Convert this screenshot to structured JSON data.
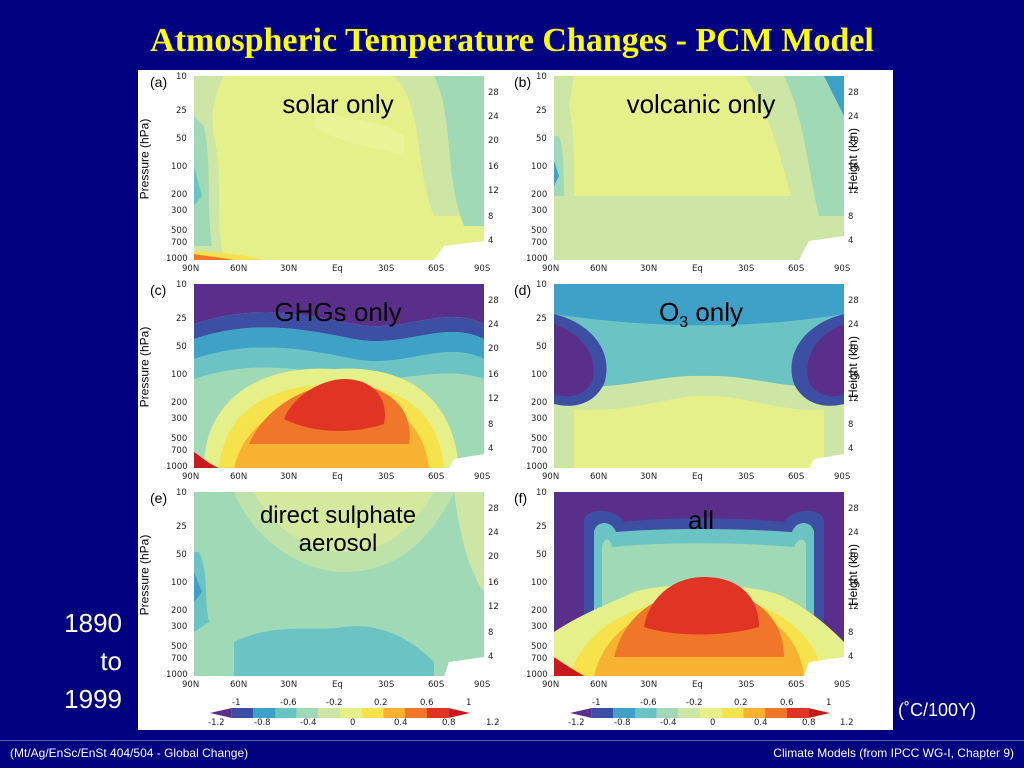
{
  "title": "Atmospheric Temperature Changes - PCM Model",
  "period": {
    "start": "1890",
    "mid": "to",
    "end": "1999"
  },
  "units": "(˚C/100Y)",
  "footer": {
    "left": "(Mt/Ag/EnSc/EnSt 404/504 - Global Change)",
    "right": "Climate Models  (from IPCC WG-I, Chapter 9)"
  },
  "axes": {
    "y_left_label": "Pressure (hPa)",
    "y_right_label": "Height (km)",
    "pressure_ticks": [
      "10",
      "25",
      "50",
      "100",
      "200",
      "300",
      "500",
      "700",
      "1000"
    ],
    "height_ticks": [
      "28",
      "24",
      "20",
      "16",
      "12",
      "8",
      "4"
    ],
    "lat_ticks": [
      "90N",
      "60N",
      "30N",
      "Eq",
      "30S",
      "60S",
      "90S"
    ]
  },
  "colorbar": {
    "upper_ticks": [
      "-1",
      "-0.6",
      "-0.2",
      "0.2",
      "0.6",
      "1"
    ],
    "lower_ticks": [
      "-1.2",
      "-0.8",
      "-0.4",
      "0",
      "0.4",
      "0.8",
      "1.2"
    ],
    "colors": [
      "#5a2f8c",
      "#3d4fa3",
      "#3fa0c8",
      "#6cc3c3",
      "#9fd9b5",
      "#cde6a6",
      "#e6f08a",
      "#f5e24c",
      "#f7b232",
      "#f0762a",
      "#e03524",
      "#c81a1a"
    ]
  },
  "panels": [
    {
      "letter": "(a)",
      "label": "solar only"
    },
    {
      "letter": "(b)",
      "label": "volcanic only"
    },
    {
      "letter": "(c)",
      "label": "GHGs only"
    },
    {
      "letter": "(d)",
      "label_main": "O",
      "label_sub": "3",
      "label_rest": " only"
    },
    {
      "letter": "(e)",
      "label_line1": "direct sulphate",
      "label_line2": "aerosol"
    },
    {
      "letter": "(f)",
      "label": "all"
    }
  ]
}
